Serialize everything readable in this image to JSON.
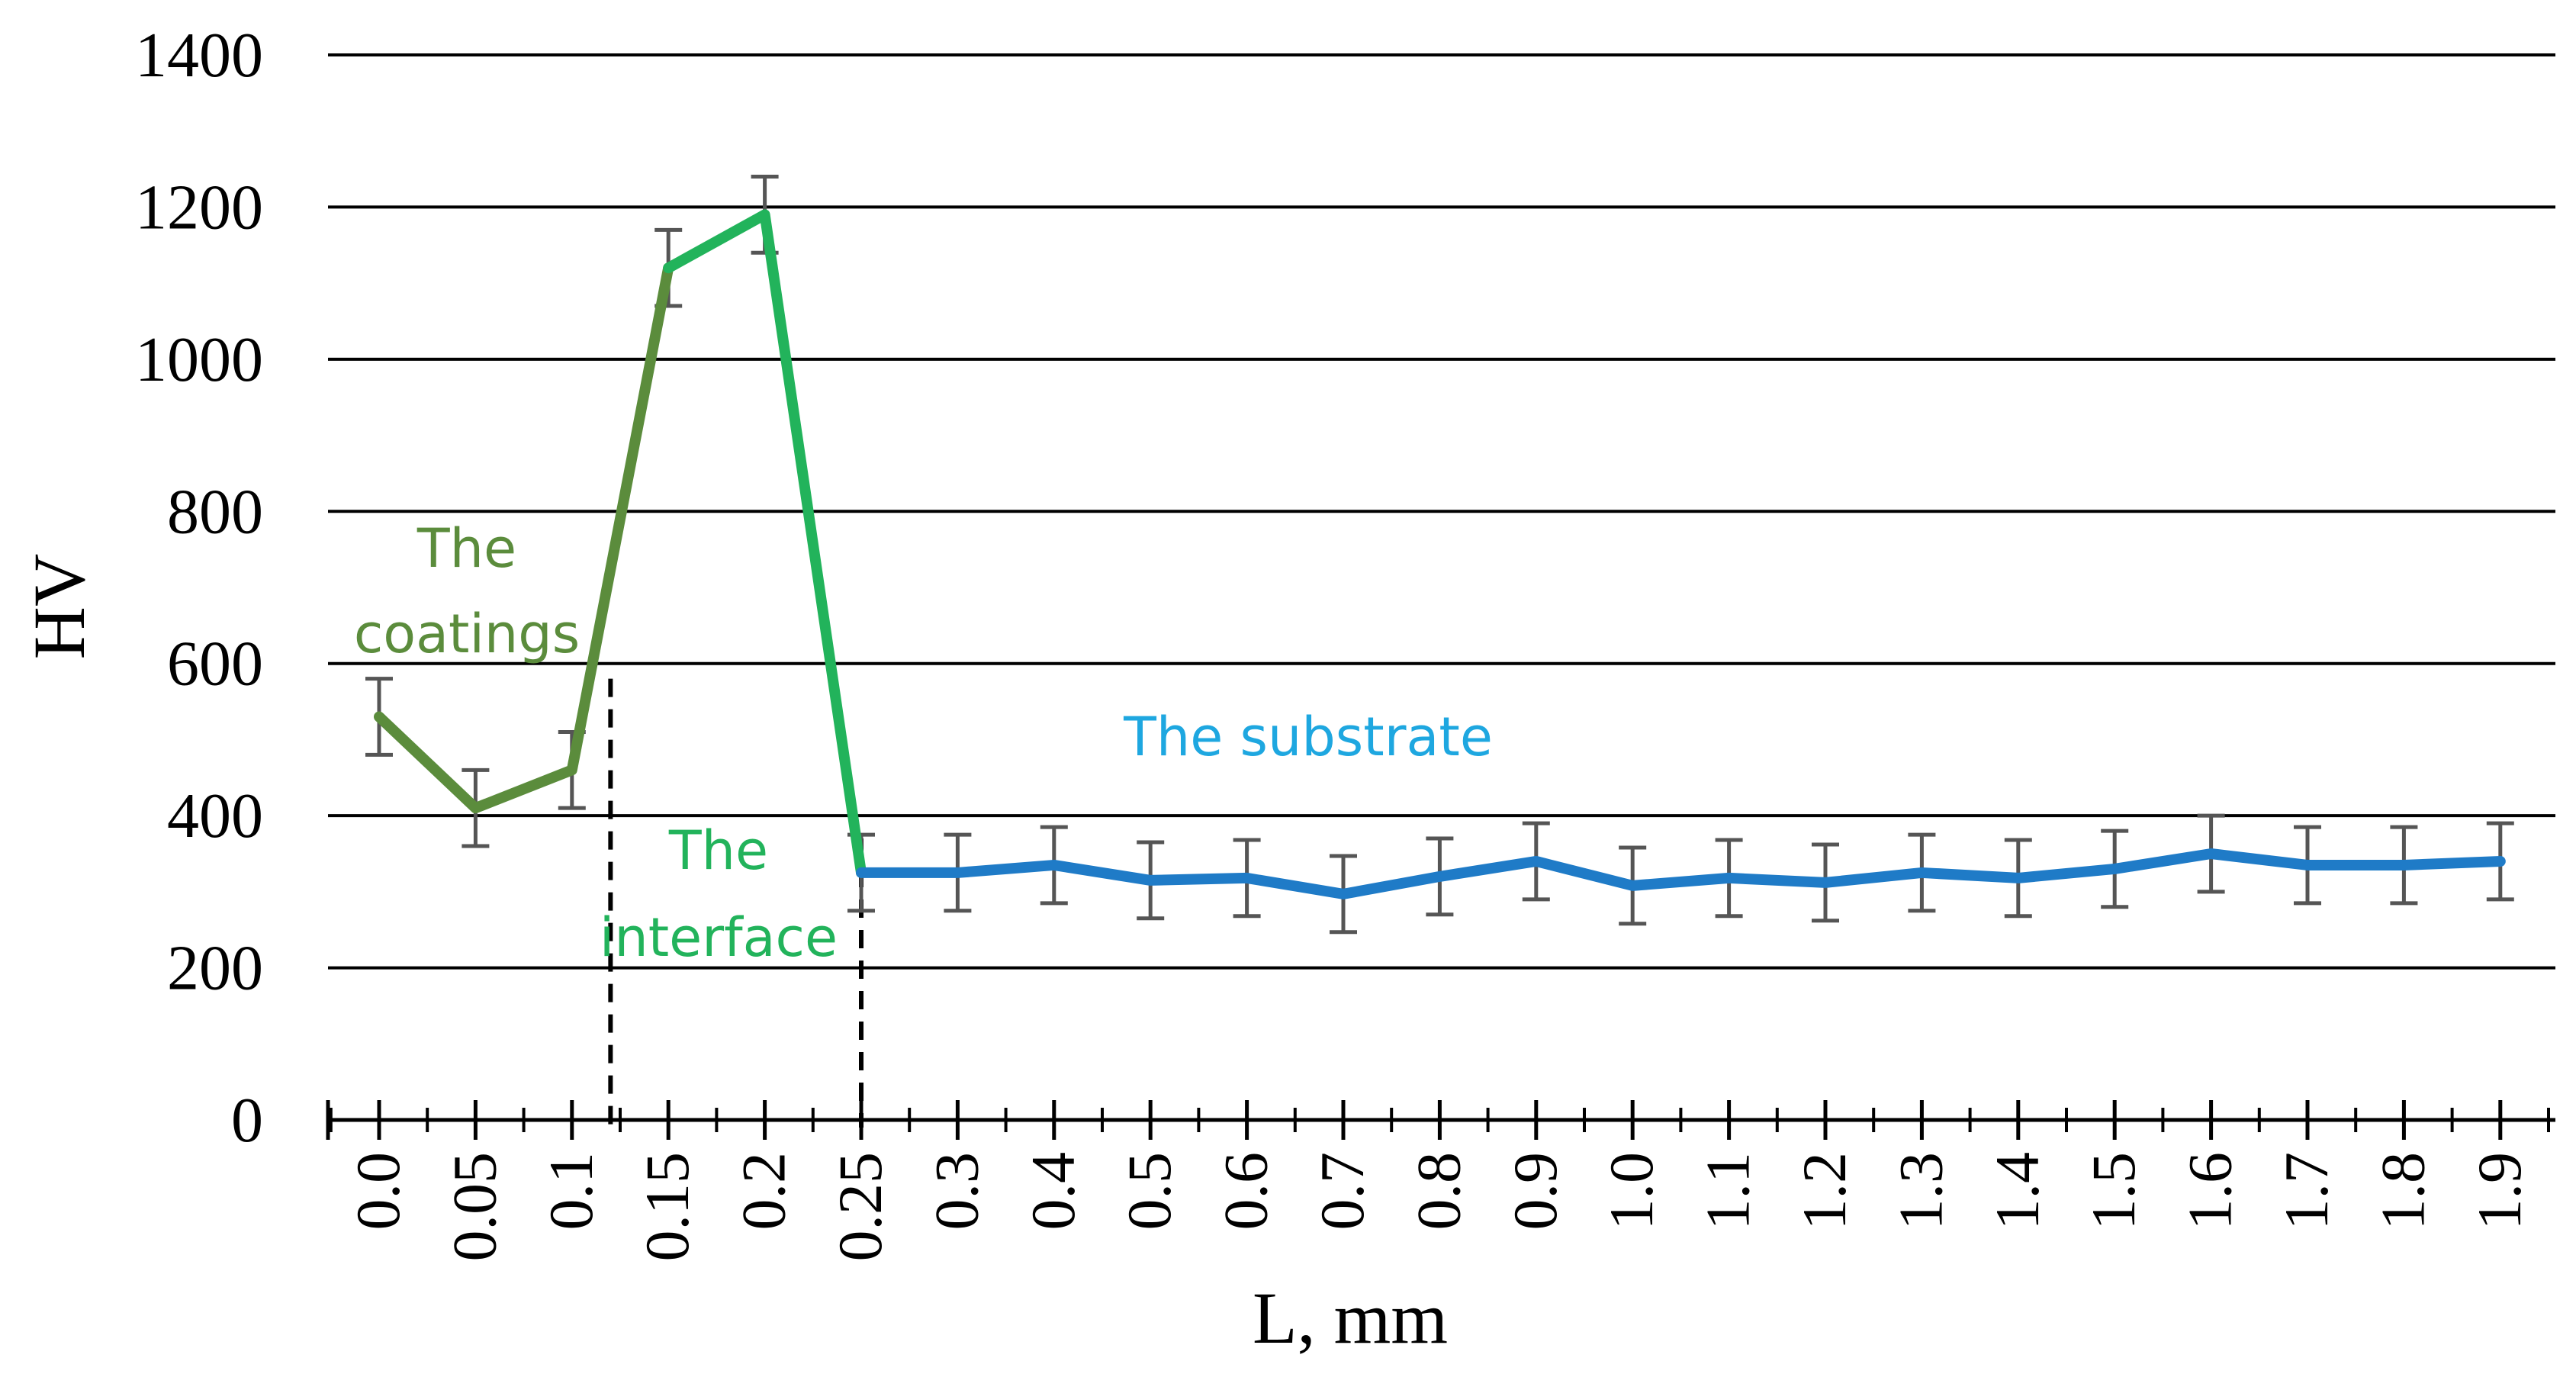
{
  "chart_data": {
    "type": "line",
    "title": "",
    "xlabel": "L, mm",
    "ylabel": "HV",
    "ylim": [
      0,
      1400
    ],
    "yticks": [
      0,
      200,
      400,
      600,
      800,
      1000,
      1200,
      1400
    ],
    "grid": "horizontal",
    "legend": "none",
    "categories": [
      "0.0",
      "0.05",
      "0.1",
      "0.15",
      "0.2",
      "0.25",
      "0.3",
      "0.4",
      "0.5",
      "0.6",
      "0.7",
      "0.8",
      "0.9",
      "1.0",
      "1.1",
      "1.2",
      "1.3",
      "1.4",
      "1.5",
      "1.6",
      "1.7",
      "1.8",
      "1.9"
    ],
    "values": [
      530,
      410,
      460,
      1120,
      1190,
      325,
      325,
      335,
      315,
      318,
      297,
      320,
      340,
      308,
      318,
      312,
      325,
      318,
      330,
      350,
      335,
      335,
      340
    ],
    "errors": [
      50,
      50,
      50,
      50,
      50,
      50,
      50,
      50,
      50,
      50,
      50,
      50,
      50,
      50,
      50,
      50,
      50,
      50,
      50,
      50,
      50,
      50,
      50
    ],
    "segments": [
      {
        "name": "The coatings",
        "from": 0,
        "to": 3,
        "color": "#5b8c3c"
      },
      {
        "name": "The interface",
        "from": 3,
        "to": 5,
        "color": "#22b35b"
      },
      {
        "name": "The substrate",
        "from": 5,
        "to": 22,
        "color": "#1f7bc7"
      }
    ],
    "boundaries": [
      0.12,
      0.25
    ],
    "annotations": [
      {
        "lines": [
          "The",
          "coatings"
        ],
        "color": "#5b8c3c"
      },
      {
        "lines": [
          "The",
          "interface"
        ],
        "color": "#22b35b"
      },
      {
        "lines": [
          "The substrate"
        ],
        "color": "#1ea7e0"
      }
    ]
  },
  "colors": {
    "grid": "#000000",
    "errorbar": "#555555"
  }
}
